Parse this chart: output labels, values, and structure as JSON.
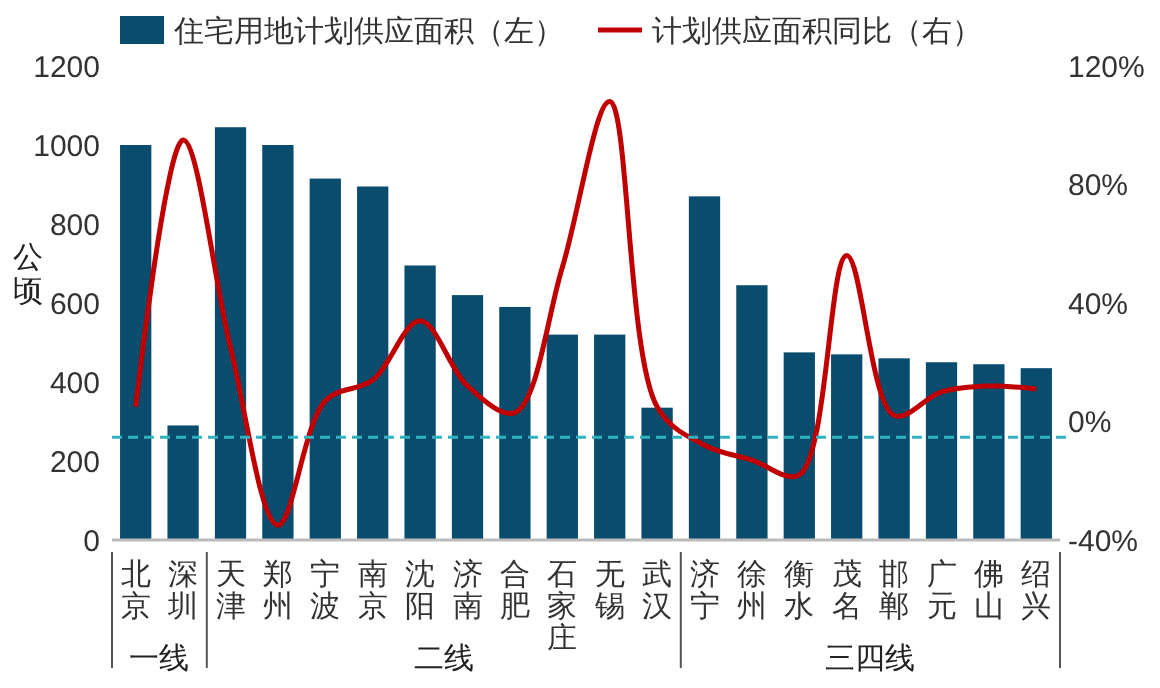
{
  "chart_data": {
    "type": "bar",
    "categories": [
      "北京",
      "深圳",
      "天津",
      "郑州",
      "宁波",
      "南京",
      "沈阳",
      "济南",
      "合肥",
      "石家庄",
      "无锡",
      "武汉",
      "济宁",
      "徐州",
      "衡水",
      "茂名",
      "邯郸",
      "广元",
      "佛山",
      "绍兴"
    ],
    "series": [
      {
        "name": "住宅用地计划供应面积（左）",
        "color": "#0a4c6e",
        "values": [
          1000,
          290,
          1045,
          1000,
          915,
          895,
          695,
          620,
          590,
          520,
          520,
          335,
          870,
          645,
          475,
          470,
          460,
          450,
          445,
          435
        ]
      },
      {
        "name": "计划供应面积同比（右）",
        "type": "line",
        "axis": "y2",
        "color": "#c00000",
        "values": [
          5,
          95,
          25,
          -35,
          7,
          14,
          34,
          12,
          3,
          52,
          108,
          5,
          -8,
          -13,
          -18,
          56,
          2,
          10,
          12,
          11
        ]
      }
    ],
    "ylabel": "公顷",
    "ylim": [
      0,
      1200
    ],
    "yticks": [
      0,
      200,
      400,
      600,
      800,
      1000,
      1200
    ],
    "y2lim": [
      -40,
      120
    ],
    "y2ticks": [
      {
        "value": -40,
        "label": "-40%"
      },
      {
        "value": 0,
        "label": "0%"
      },
      {
        "value": 40,
        "label": "40%"
      },
      {
        "value": 80,
        "label": "80%"
      },
      {
        "value": 120,
        "label": "120%"
      }
    ],
    "ref_lines": [
      {
        "axis": "y",
        "value": 260,
        "color": "#2fb3c0",
        "line_style": "dashed"
      }
    ],
    "annotations": [
      "一线",
      "二线",
      "三四线"
    ],
    "legend": "top",
    "grid": false,
    "marker": "none",
    "line_style": "solid"
  }
}
